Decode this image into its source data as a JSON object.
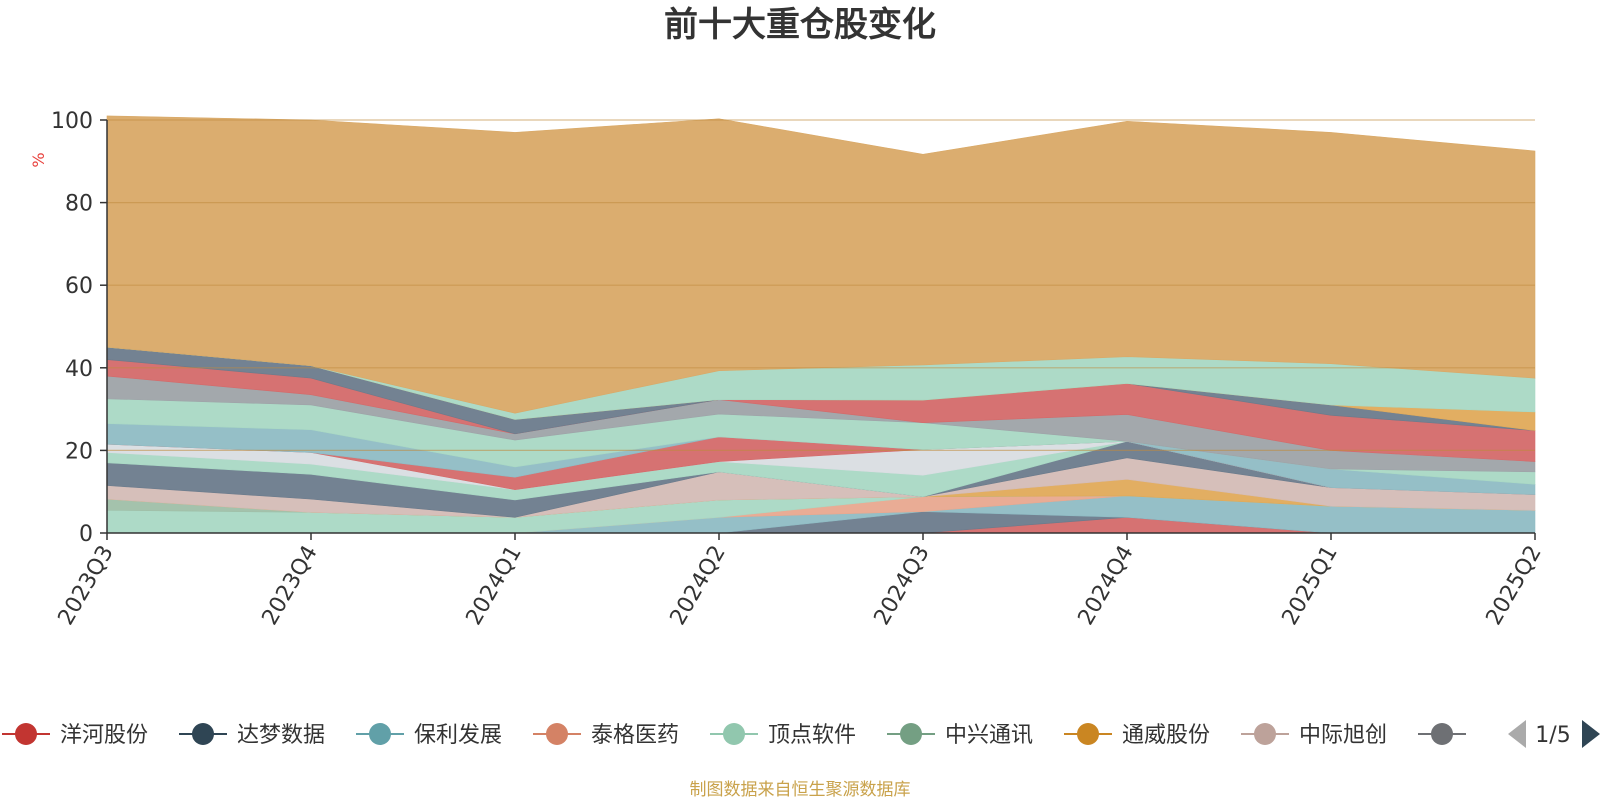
{
  "chart_data": {
    "type": "area",
    "title": "前十大重仓股变化",
    "ylabel": "%",
    "ylim": [
      0,
      100
    ],
    "yticks": [
      0,
      20,
      40,
      60,
      80,
      100
    ],
    "grid": true,
    "legend_position": "bottom",
    "categories": [
      "2023Q3",
      "2023Q4",
      "2024Q1",
      "2024Q2",
      "2024Q3",
      "2024Q4",
      "2025Q1",
      "2025Q2"
    ],
    "series": [
      {
        "name": "洋河股份",
        "color": "#d46a6a",
        "values": [
          0,
          0,
          0,
          0,
          0,
          3.8,
          0,
          0
        ]
      },
      {
        "name": "达梦数据",
        "color": "#6b7b8c",
        "values": [
          0,
          0,
          0,
          0,
          5.2,
          0,
          0,
          0
        ]
      },
      {
        "name": "保利发展",
        "color": "#8fbcc4",
        "values": [
          0,
          0,
          0,
          3.8,
          0,
          5.2,
          6.5,
          5.5
        ]
      },
      {
        "name": "泰格医药",
        "color": "#e8a88f",
        "values": [
          0,
          0,
          0,
          0,
          3.6,
          0,
          0,
          0
        ]
      },
      {
        "name": "顶点软件",
        "color": "#a9d8c4",
        "values": [
          5.5,
          5.0,
          3.8,
          4.2,
          0,
          0,
          0,
          0
        ]
      },
      {
        "name": "中兴通讯",
        "color": "#9fbfa8",
        "values": [
          2.7,
          0,
          0,
          0,
          0,
          0,
          0,
          0
        ]
      },
      {
        "name": "通威股份",
        "color": "#e0aa5a",
        "values": [
          0,
          0,
          0,
          0,
          0,
          4.0,
          0,
          0
        ]
      },
      {
        "name": "中际旭创",
        "color": "#d4bcb6",
        "values": [
          3.3,
          3.2,
          0,
          6.8,
          0,
          5.2,
          4.5,
          3.8
        ]
      },
      {
        "name": "",
        "color": "#6b7b8c",
        "values": [
          5.5,
          6.0,
          4.2,
          0,
          0,
          4.0,
          0,
          0
        ]
      },
      {
        "name": "",
        "color": "#a9d8c4",
        "values": [
          2.5,
          2.5,
          2.5,
          2.5,
          5.2,
          0,
          0,
          0
        ]
      },
      {
        "name": "",
        "color": "#d9dde2",
        "values": [
          2.0,
          2.8,
          0,
          0,
          6.2,
          0,
          0,
          0
        ]
      },
      {
        "name": "",
        "color": "#d46a6a",
        "values": [
          0,
          0,
          3.0,
          6.0,
          0,
          0,
          0,
          0
        ]
      },
      {
        "name": "",
        "color": "#8fbcc4",
        "values": [
          5.0,
          5.5,
          2.5,
          0,
          0,
          0,
          4.5,
          2.5
        ]
      },
      {
        "name": "",
        "color": "#a9d8c4",
        "values": [
          6.0,
          6.0,
          6.5,
          5.5,
          6.5,
          0,
          0,
          3.0
        ]
      },
      {
        "name": "",
        "color": "#9ea3a8",
        "values": [
          5.5,
          2.5,
          1.5,
          3.5,
          0,
          6.5,
          4.5,
          2.5
        ]
      },
      {
        "name": "",
        "color": "#d46a6a",
        "values": [
          4.0,
          4.0,
          0,
          0,
          5.5,
          7.5,
          8.5,
          7.5
        ]
      },
      {
        "name": "",
        "color": "#6b7b8c",
        "values": [
          3.0,
          3.0,
          3.5,
          0,
          0,
          0,
          2.5,
          0
        ]
      },
      {
        "name": "",
        "color": "#e0aa5a",
        "values": [
          0,
          0,
          0,
          0,
          0,
          0,
          0,
          4.5
        ]
      },
      {
        "name": "",
        "color": "#a9d8c4",
        "values": [
          0,
          0,
          1.5,
          7.0,
          8.5,
          6.5,
          10.0,
          8.2
        ]
      },
      {
        "name": "",
        "color": "#d9a967",
        "values": [
          56.0,
          59.5,
          68.0,
          61.0,
          51.0,
          57.0,
          56.0,
          55.0
        ]
      }
    ]
  },
  "legend": {
    "items": [
      {
        "label": "洋河股份",
        "color": "#c23531"
      },
      {
        "label": "达梦数据",
        "color": "#2f4554"
      },
      {
        "label": "保利发展",
        "color": "#61a0a8"
      },
      {
        "label": "泰格医药",
        "color": "#d48265"
      },
      {
        "label": "顶点软件",
        "color": "#91c7ae"
      },
      {
        "label": "中兴通讯",
        "color": "#749f83"
      },
      {
        "label": "通威股份",
        "color": "#ca8622"
      },
      {
        "label": "中际旭创",
        "color": "#bda29a"
      },
      {
        "label": "",
        "color": "#6e7074"
      }
    ],
    "page_text": "1/5",
    "prev_icon": "triangle-left-icon",
    "next_icon": "triangle-right-icon",
    "prev_color": "#aaaaaa",
    "next_color": "#2f4554"
  },
  "footer": {
    "text": "制图数据来自恒生聚源数据库",
    "color": "#c9a24b"
  },
  "colors": {
    "unit": "#e8403c",
    "axis": "#333333",
    "grid": "#c08a3e"
  }
}
